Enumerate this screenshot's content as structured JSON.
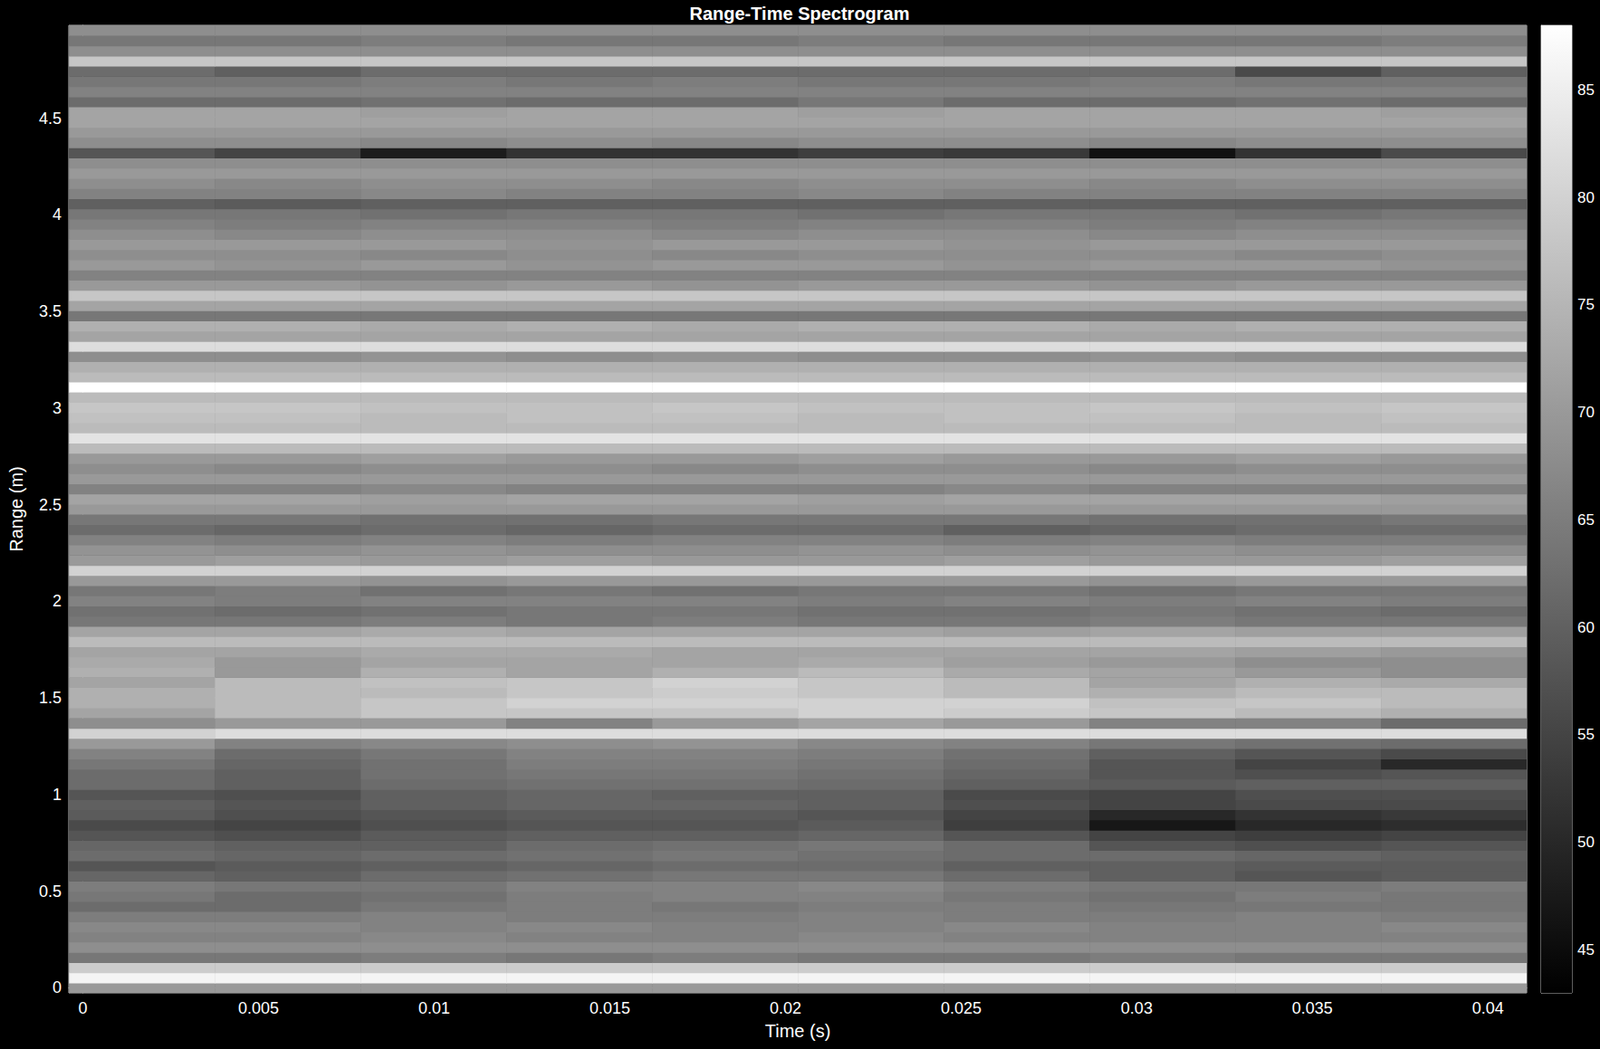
{
  "chart_data": {
    "type": "heatmap",
    "title": "Range-Time Spectrogram",
    "x_label": "Time (s)",
    "y_label": "Range (m)",
    "xlim": [
      -0.0004,
      0.0411
    ],
    "xticks": [
      0,
      0.005,
      0.01,
      0.015,
      0.02,
      0.025,
      0.03,
      0.035,
      0.04
    ],
    "ylim": [
      -0.026,
      4.98
    ],
    "yticks": [
      0,
      0.5,
      1,
      1.5,
      2,
      2.5,
      3,
      3.5,
      4,
      4.5
    ],
    "x": [
      0.00168,
      0.00583,
      0.00998,
      0.01413,
      0.01828,
      0.02243,
      0.02658,
      0.03073,
      0.03488,
      0.03903
    ],
    "y": [
      0.0,
      0.053,
      0.105,
      0.158,
      0.211,
      0.264,
      0.316,
      0.369,
      0.422,
      0.474,
      0.527,
      0.58,
      0.633,
      0.685,
      0.738,
      0.791,
      0.843,
      0.896,
      0.949,
      1.001,
      1.054,
      1.107,
      1.159,
      1.212,
      1.265,
      1.318,
      1.37,
      1.423,
      1.476,
      1.528,
      1.581,
      1.634,
      1.686,
      1.739,
      1.792,
      1.845,
      1.897,
      1.95,
      2.003,
      2.055,
      2.108,
      2.161,
      2.213,
      2.266,
      2.319,
      2.372,
      2.424,
      2.477,
      2.53,
      2.582,
      2.635,
      2.688,
      2.74,
      2.793,
      2.846,
      2.898,
      2.951,
      3.004,
      3.056,
      3.109,
      3.162,
      3.214,
      3.267,
      3.32,
      3.372,
      3.425,
      3.478,
      3.531,
      3.583,
      3.636,
      3.689,
      3.741,
      3.794,
      3.847,
      3.9,
      3.952,
      4.005,
      4.058,
      4.11,
      4.163,
      4.216,
      4.268,
      4.321,
      4.374,
      4.427,
      4.479,
      4.532,
      4.585,
      4.637,
      4.69,
      4.743,
      4.796,
      4.848,
      4.901,
      4.954
    ],
    "values": [
      [
        70,
        70,
        70,
        70,
        70,
        70,
        70,
        70,
        70,
        70
      ],
      [
        86,
        86,
        86,
        86,
        86,
        86,
        86,
        86,
        86,
        86
      ],
      [
        79,
        79,
        79,
        79,
        79,
        79,
        79,
        79,
        79,
        79
      ],
      [
        64,
        64,
        65,
        64,
        65,
        64,
        64,
        65,
        64,
        64
      ],
      [
        68,
        68,
        68,
        68,
        68,
        68,
        68,
        68,
        68,
        68
      ],
      [
        66,
        66,
        67,
        66,
        66,
        67,
        66,
        66,
        66,
        66
      ],
      [
        67,
        67,
        66,
        67,
        66,
        66,
        67,
        66,
        66,
        67
      ],
      [
        65,
        65,
        66,
        65,
        65,
        66,
        65,
        65,
        66,
        65
      ],
      [
        62,
        62,
        64,
        65,
        64,
        65,
        65,
        64,
        64,
        64
      ],
      [
        64,
        62,
        63,
        65,
        66,
        66,
        64,
        63,
        65,
        64
      ],
      [
        65,
        64,
        64,
        66,
        66,
        67,
        65,
        64,
        64,
        65
      ],
      [
        61,
        60,
        62,
        63,
        64,
        64,
        62,
        60,
        58,
        59
      ],
      [
        58,
        59,
        60,
        61,
        62,
        62,
        60,
        60,
        59,
        59
      ],
      [
        62,
        61,
        62,
        63,
        64,
        63,
        62,
        62,
        61,
        60
      ],
      [
        61,
        60,
        60,
        62,
        63,
        64,
        62,
        58,
        57,
        58
      ],
      [
        58,
        57,
        59,
        60,
        60,
        61,
        58,
        55,
        54,
        55
      ],
      [
        56,
        55,
        57,
        58,
        58,
        59,
        54,
        47,
        50,
        51
      ],
      [
        59,
        57,
        58,
        59,
        59,
        58,
        55,
        50,
        52,
        53
      ],
      [
        60,
        58,
        60,
        61,
        61,
        60,
        57,
        55,
        56,
        56
      ],
      [
        58,
        57,
        60,
        61,
        60,
        60,
        56,
        55,
        57,
        57
      ],
      [
        62,
        60,
        62,
        63,
        63,
        62,
        60,
        59,
        60,
        60
      ],
      [
        62,
        60,
        63,
        64,
        64,
        63,
        61,
        58,
        57,
        58
      ],
      [
        64,
        61,
        63,
        65,
        65,
        64,
        62,
        58,
        55,
        50
      ],
      [
        66,
        62,
        64,
        66,
        66,
        65,
        63,
        60,
        58,
        56
      ],
      [
        70,
        66,
        67,
        68,
        69,
        67,
        66,
        64,
        63,
        62
      ],
      [
        80,
        82,
        82,
        82,
        82,
        82,
        82,
        82,
        82,
        82
      ],
      [
        68,
        70,
        70,
        66,
        70,
        72,
        70,
        66,
        66,
        62
      ],
      [
        72,
        76,
        78,
        78,
        78,
        80,
        79,
        78,
        76,
        74
      ],
      [
        74,
        76,
        78,
        80,
        80,
        80,
        80,
        77,
        78,
        76
      ],
      [
        74,
        76,
        76,
        78,
        79,
        78,
        76,
        74,
        76,
        76
      ],
      [
        72,
        76,
        77,
        78,
        80,
        78,
        76,
        72,
        74,
        73
      ],
      [
        74,
        70,
        74,
        72,
        74,
        76,
        73,
        72,
        70,
        68
      ],
      [
        73,
        70,
        72,
        72,
        72,
        73,
        71,
        70,
        68,
        68
      ],
      [
        72,
        72,
        73,
        73,
        72,
        72,
        72,
        72,
        71,
        70
      ],
      [
        76,
        76,
        76,
        76,
        76,
        76,
        76,
        76,
        76,
        76
      ],
      [
        72,
        72,
        73,
        72,
        72,
        72,
        71,
        72,
        71,
        71
      ],
      [
        64,
        64,
        65,
        64,
        65,
        64,
        64,
        65,
        64,
        64
      ],
      [
        63,
        62,
        63,
        64,
        64,
        63,
        63,
        64,
        63,
        62
      ],
      [
        66,
        65,
        66,
        66,
        66,
        65,
        66,
        65,
        66,
        65
      ],
      [
        64,
        65,
        63,
        64,
        63,
        64,
        64,
        63,
        64,
        64
      ],
      [
        70,
        70,
        69,
        70,
        70,
        70,
        70,
        69,
        70,
        70
      ],
      [
        80,
        80,
        80,
        80,
        80,
        80,
        80,
        80,
        80,
        80
      ],
      [
        70,
        71,
        70,
        71,
        70,
        70,
        71,
        70,
        70,
        71
      ],
      [
        69,
        68,
        69,
        68,
        68,
        69,
        68,
        69,
        68,
        68
      ],
      [
        66,
        65,
        66,
        65,
        66,
        66,
        65,
        66,
        65,
        65
      ],
      [
        62,
        61,
        62,
        61,
        62,
        62,
        60,
        61,
        62,
        62
      ],
      [
        64,
        64,
        63,
        63,
        64,
        64,
        64,
        63,
        63,
        64
      ],
      [
        70,
        70,
        70,
        70,
        70,
        70,
        70,
        70,
        70,
        70
      ],
      [
        72,
        72,
        71,
        72,
        72,
        71,
        72,
        72,
        72,
        71
      ],
      [
        66,
        66,
        67,
        66,
        66,
        66,
        67,
        66,
        66,
        66
      ],
      [
        70,
        70,
        70,
        70,
        70,
        70,
        70,
        70,
        70,
        70
      ],
      [
        68,
        67,
        68,
        68,
        67,
        68,
        68,
        67,
        68,
        68
      ],
      [
        70,
        70,
        71,
        70,
        70,
        71,
        70,
        70,
        71,
        70
      ],
      [
        76,
        76,
        76,
        76,
        76,
        76,
        76,
        76,
        76,
        76
      ],
      [
        83,
        83,
        83,
        83,
        83,
        83,
        83,
        83,
        83,
        83
      ],
      [
        76,
        76,
        76,
        76,
        76,
        76,
        76,
        76,
        76,
        76
      ],
      [
        77,
        77,
        76,
        77,
        77,
        76,
        77,
        77,
        76,
        77
      ],
      [
        78,
        78,
        77,
        77,
        78,
        77,
        77,
        78,
        77,
        78
      ],
      [
        76,
        76,
        76,
        76,
        76,
        76,
        76,
        76,
        76,
        76
      ],
      [
        88,
        88,
        88,
        88,
        88,
        88,
        88,
        88,
        88,
        88
      ],
      [
        76,
        76,
        76,
        76,
        76,
        76,
        76,
        76,
        76,
        76
      ],
      [
        74,
        74,
        74,
        74,
        74,
        74,
        74,
        74,
        74,
        74
      ],
      [
        68,
        68,
        69,
        68,
        69,
        68,
        68,
        69,
        68,
        68
      ],
      [
        82,
        82,
        82,
        82,
        82,
        82,
        82,
        82,
        82,
        82
      ],
      [
        72,
        72,
        72,
        72,
        72,
        72,
        72,
        72,
        72,
        72
      ],
      [
        74,
        74,
        73,
        74,
        73,
        74,
        74,
        73,
        74,
        74
      ],
      [
        64,
        64,
        64,
        64,
        64,
        64,
        64,
        64,
        64,
        64
      ],
      [
        72,
        72,
        72,
        72,
        72,
        72,
        72,
        72,
        72,
        72
      ],
      [
        78,
        78,
        78,
        78,
        78,
        78,
        78,
        78,
        78,
        78
      ],
      [
        70,
        70,
        69,
        70,
        69,
        70,
        70,
        69,
        70,
        70
      ],
      [
        66,
        66,
        66,
        66,
        66,
        66,
        66,
        66,
        66,
        66
      ],
      [
        70,
        69,
        70,
        69,
        70,
        70,
        69,
        70,
        70,
        69
      ],
      [
        68,
        68,
        67,
        68,
        67,
        68,
        68,
        68,
        67,
        68
      ],
      [
        70,
        70,
        70,
        69,
        70,
        70,
        69,
        70,
        70,
        70
      ],
      [
        68,
        67,
        68,
        68,
        67,
        68,
        68,
        67,
        68,
        68
      ],
      [
        66,
        65,
        66,
        66,
        65,
        66,
        66,
        65,
        66,
        66
      ],
      [
        64,
        64,
        63,
        64,
        64,
        63,
        64,
        64,
        63,
        64
      ],
      [
        60,
        59,
        60,
        60,
        60,
        60,
        60,
        60,
        60,
        60
      ],
      [
        66,
        66,
        67,
        66,
        66,
        67,
        66,
        66,
        66,
        66
      ],
      [
        68,
        67,
        68,
        68,
        67,
        68,
        68,
        67,
        68,
        68
      ],
      [
        70,
        70,
        70,
        70,
        70,
        70,
        70,
        70,
        70,
        70
      ],
      [
        68,
        68,
        68,
        68,
        68,
        68,
        68,
        68,
        68,
        68
      ],
      [
        58,
        55,
        48,
        52,
        52,
        54,
        53,
        46,
        52,
        56
      ],
      [
        68,
        68,
        67,
        68,
        67,
        68,
        68,
        67,
        68,
        68
      ],
      [
        70,
        70,
        70,
        70,
        70,
        70,
        70,
        70,
        70,
        70
      ],
      [
        72,
        72,
        72,
        72,
        72,
        72,
        72,
        72,
        72,
        72
      ],
      [
        72,
        72,
        71,
        72,
        72,
        71,
        72,
        72,
        72,
        71
      ],
      [
        62,
        62,
        63,
        62,
        62,
        64,
        62,
        62,
        63,
        62
      ],
      [
        66,
        66,
        66,
        66,
        66,
        66,
        66,
        66,
        66,
        66
      ],
      [
        64,
        64,
        65,
        64,
        65,
        64,
        64,
        65,
        64,
        64
      ],
      [
        62,
        60,
        62,
        62,
        62,
        62,
        62,
        62,
        56,
        60
      ],
      [
        78,
        78,
        78,
        78,
        78,
        78,
        78,
        78,
        78,
        78
      ],
      [
        68,
        68,
        68,
        68,
        68,
        68,
        68,
        68,
        68,
        68
      ],
      [
        64,
        64,
        65,
        64,
        64,
        65,
        64,
        64,
        64,
        65
      ],
      [
        68,
        68,
        68,
        68,
        68,
        68,
        68,
        68,
        68,
        68
      ]
    ],
    "colorbar": {
      "range": [
        43,
        88
      ],
      "ticks": [
        45,
        50,
        55,
        60,
        65,
        70,
        75,
        80,
        85
      ]
    },
    "grid": false
  }
}
